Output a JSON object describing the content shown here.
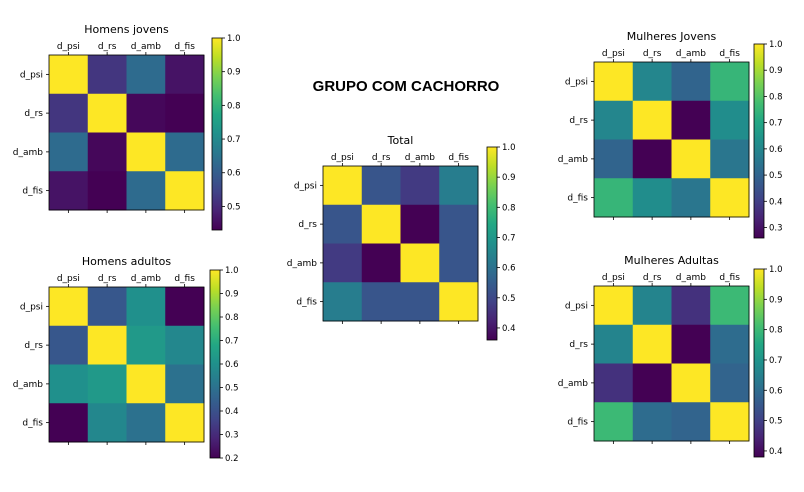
{
  "heading": "GRUPO COM CACHORRO",
  "chart_data": [
    {
      "type": "heatmap",
      "title": "Homens jovens",
      "labels": [
        "d_psi",
        "d_rs",
        "d_amb",
        "d_fis"
      ],
      "values": [
        [
          1.0,
          0.52,
          0.63,
          0.46
        ],
        [
          0.52,
          1.0,
          0.44,
          0.43
        ],
        [
          0.63,
          0.44,
          1.0,
          0.63
        ],
        [
          0.46,
          0.43,
          0.63,
          1.0
        ]
      ],
      "colorbar": {
        "min": 0.43,
        "max": 1.0,
        "ticks": [
          "0.5",
          "0.6",
          "0.7",
          "0.8",
          "0.9",
          "1.0"
        ]
      }
    },
    {
      "type": "heatmap",
      "title": "Homens adultos",
      "labels": [
        "d_psi",
        "d_rs",
        "d_amb",
        "d_fis"
      ],
      "values": [
        [
          1.0,
          0.42,
          0.6,
          0.2
        ],
        [
          0.42,
          1.0,
          0.63,
          0.57
        ],
        [
          0.6,
          0.63,
          1.0,
          0.5
        ],
        [
          0.2,
          0.57,
          0.5,
          1.0
        ]
      ],
      "colorbar": {
        "min": 0.2,
        "max": 1.0,
        "ticks": [
          "0.2",
          "0.3",
          "0.4",
          "0.5",
          "0.6",
          "0.7",
          "0.8",
          "0.9",
          "1.0"
        ]
      }
    },
    {
      "type": "heatmap",
      "title": "Total",
      "labels": [
        "d_psi",
        "d_rs",
        "d_amb",
        "d_fis"
      ],
      "values": [
        [
          1.0,
          0.53,
          0.47,
          0.63
        ],
        [
          0.53,
          1.0,
          0.36,
          0.53
        ],
        [
          0.47,
          0.36,
          1.0,
          0.53
        ],
        [
          0.63,
          0.53,
          0.53,
          1.0
        ]
      ],
      "colorbar": {
        "min": 0.36,
        "max": 1.0,
        "ticks": [
          "0.4",
          "0.5",
          "0.6",
          "0.7",
          "0.8",
          "0.9",
          "1.0"
        ]
      }
    },
    {
      "type": "heatmap",
      "title": "Mulheres Jovens",
      "labels": [
        "d_psi",
        "d_rs",
        "d_amb",
        "d_fis"
      ],
      "values": [
        [
          1.0,
          0.6,
          0.5,
          0.75
        ],
        [
          0.6,
          1.0,
          0.26,
          0.62
        ],
        [
          0.5,
          0.26,
          1.0,
          0.55
        ],
        [
          0.75,
          0.62,
          0.55,
          1.0
        ]
      ],
      "colorbar": {
        "min": 0.26,
        "max": 1.0,
        "ticks": [
          "0.3",
          "0.4",
          "0.5",
          "0.6",
          "0.7",
          "0.8",
          "0.9",
          "1.0"
        ]
      }
    },
    {
      "type": "heatmap",
      "title": "Mulheres Adultas",
      "labels": [
        "d_psi",
        "d_rs",
        "d_amb",
        "d_fis"
      ],
      "values": [
        [
          1.0,
          0.66,
          0.47,
          0.8
        ],
        [
          0.66,
          1.0,
          0.38,
          0.6
        ],
        [
          0.47,
          0.38,
          1.0,
          0.58
        ],
        [
          0.8,
          0.6,
          0.58,
          1.0
        ]
      ],
      "colorbar": {
        "min": 0.38,
        "max": 1.0,
        "ticks": [
          "0.4",
          "0.5",
          "0.6",
          "0.7",
          "0.8",
          "0.9",
          "1.0"
        ]
      }
    }
  ]
}
